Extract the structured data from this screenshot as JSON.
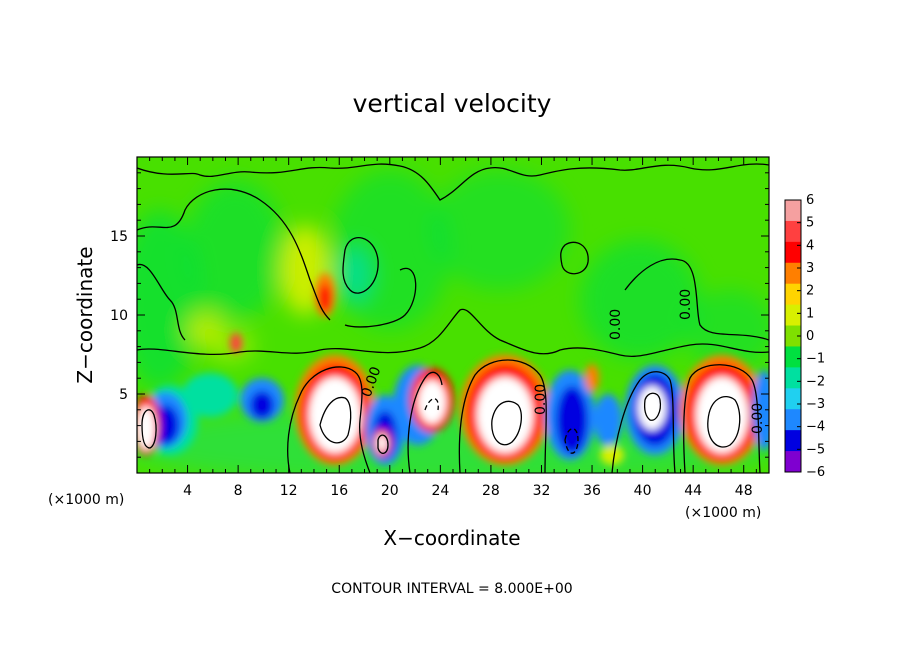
{
  "chart_data": {
    "type": "heatmap",
    "title": "vertical velocity",
    "xlabel": "X−coordinate",
    "ylabel": "Z−coordinate",
    "x_unit": "(×1000 m)",
    "x_unit_right": "(×1000 m)",
    "xlim": [
      0,
      50
    ],
    "ylim": [
      0,
      20
    ],
    "x_ticks": [
      "4",
      "8",
      "12",
      "16",
      "20",
      "24",
      "28",
      "32",
      "36",
      "40",
      "44",
      "48"
    ],
    "y_ticks": [
      "5",
      "10",
      "15"
    ],
    "colorbar": {
      "ticks": [
        "6",
        "5",
        "4",
        "3",
        "2",
        "1",
        "0",
        "−1",
        "−2",
        "−3",
        "−4",
        "−5",
        "−6"
      ],
      "colors": [
        "#f5a0a0",
        "#ff4040",
        "#ff0000",
        "#ff7f00",
        "#ffd400",
        "#d8f000",
        "#7fe000",
        "#00e040",
        "#00e0a0",
        "#20d0f0",
        "#1e88ff",
        "#0000e0",
        "#7f00d0"
      ]
    },
    "contour_labels": [
      "0.00",
      "0.00",
      "0.00",
      "0.00",
      "0.00"
    ],
    "footer": "CONTOUR INTERVAL = 8.000E+00",
    "features": [
      {
        "kind": "updraft",
        "x": 1.0,
        "z": 2.8,
        "value": 8
      },
      {
        "kind": "downdraft",
        "x": 3.0,
        "z": 2.5,
        "value": -5
      },
      {
        "kind": "updraft",
        "x": 15.5,
        "z": 3.5,
        "value": 8
      },
      {
        "kind": "downdraft",
        "x": 19.5,
        "z": 2.0,
        "value": -5
      },
      {
        "kind": "updraft",
        "x": 23.0,
        "z": 4.5,
        "value": 8
      },
      {
        "kind": "updraft",
        "x": 29.0,
        "z": 3.5,
        "value": 8
      },
      {
        "kind": "downdraft",
        "x": 34.0,
        "z": 3.0,
        "value": -5
      },
      {
        "kind": "updraft",
        "x": 40.5,
        "z": 4.0,
        "value": 8
      },
      {
        "kind": "updraft",
        "x": 46.0,
        "z": 3.5,
        "value": 8
      },
      {
        "kind": "updraft",
        "x": 14.5,
        "z": 11.0,
        "value": 4
      },
      {
        "kind": "updraft",
        "x": 7.8,
        "z": 8.3,
        "value": 4
      }
    ]
  }
}
